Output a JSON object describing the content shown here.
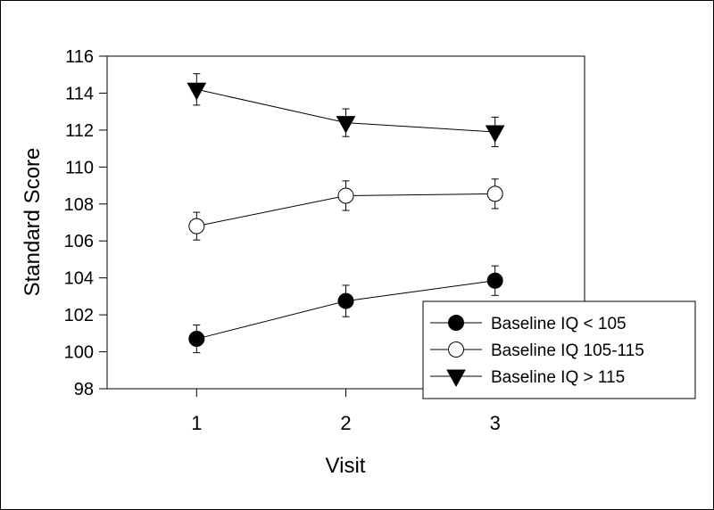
{
  "chart_data": {
    "type": "line",
    "xlabel": "Visit",
    "ylabel": "Standard Score",
    "x": [
      1,
      2,
      3
    ],
    "xlim": [
      0.4,
      3.6
    ],
    "ylim": [
      98,
      116
    ],
    "yticks": [
      98,
      100,
      102,
      104,
      106,
      108,
      110,
      112,
      114,
      116
    ],
    "xticks": [
      1,
      2,
      3
    ],
    "grid": false,
    "legend_position": "bottom-right",
    "series": [
      {
        "name": "Baseline IQ < 105",
        "marker": "filled-circle",
        "values": [
          100.7,
          102.75,
          103.85
        ],
        "errors": [
          0.75,
          0.85,
          0.8
        ]
      },
      {
        "name": "Baseline IQ 105-115",
        "marker": "open-circle",
        "values": [
          106.8,
          108.45,
          108.55
        ],
        "errors": [
          0.75,
          0.8,
          0.8
        ]
      },
      {
        "name": "Baseline IQ > 115",
        "marker": "filled-triangle-down",
        "values": [
          114.2,
          112.4,
          111.9
        ],
        "errors": [
          0.85,
          0.75,
          0.8
        ]
      }
    ]
  }
}
